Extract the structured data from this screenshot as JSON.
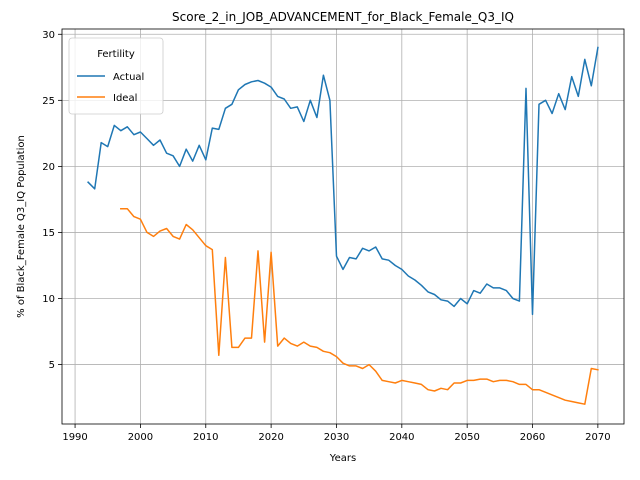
{
  "chart_data": {
    "type": "line",
    "title": "Score_2_in_JOB_ADVANCEMENT_for_Black_Female_Q3_IQ",
    "xlabel": "Years",
    "ylabel": "% of Black_Female Q3_IQ Population",
    "xlim": [
      1988,
      2074
    ],
    "ylim": [
      0.5,
      30.4
    ],
    "xticks": [
      1990,
      2000,
      2010,
      2020,
      2030,
      2040,
      2050,
      2060,
      2070
    ],
    "yticks": [
      5,
      10,
      15,
      20,
      25,
      30
    ],
    "grid": true,
    "legend": {
      "title": "Fertility",
      "position": "top-left"
    },
    "series": [
      {
        "name": "Actual",
        "color": "#1f77b4",
        "x": [
          1992,
          1993,
          1994,
          1995,
          1996,
          1997,
          1998,
          1999,
          2000,
          2001,
          2002,
          2003,
          2004,
          2005,
          2006,
          2007,
          2008,
          2009,
          2010,
          2011,
          2012,
          2013,
          2014,
          2015,
          2016,
          2017,
          2018,
          2019,
          2020,
          2021,
          2022,
          2023,
          2024,
          2025,
          2026,
          2027,
          2028,
          2029,
          2030,
          2031,
          2032,
          2033,
          2034,
          2035,
          2036,
          2037,
          2038,
          2039,
          2040,
          2041,
          2042,
          2043,
          2044,
          2045,
          2046,
          2047,
          2048,
          2049,
          2050,
          2051,
          2052,
          2053,
          2054,
          2055,
          2056,
          2057,
          2058,
          2059,
          2060,
          2061,
          2062,
          2063,
          2064,
          2065,
          2066,
          2067,
          2068,
          2069,
          2070
        ],
        "y": [
          18.8,
          18.3,
          21.8,
          21.5,
          23.1,
          22.7,
          23.0,
          22.4,
          22.6,
          22.1,
          21.6,
          22.0,
          21.0,
          20.8,
          20.0,
          21.3,
          20.4,
          21.6,
          20.5,
          22.9,
          22.8,
          24.4,
          24.7,
          25.8,
          26.2,
          26.4,
          26.5,
          26.3,
          26.0,
          25.3,
          25.1,
          24.4,
          24.5,
          23.4,
          25.0,
          23.7,
          26.9,
          25.0,
          13.2,
          12.2,
          13.1,
          13.0,
          13.8,
          13.6,
          13.9,
          13.0,
          12.9,
          12.5,
          12.2,
          11.7,
          11.4,
          11.0,
          10.5,
          10.3,
          9.9,
          9.8,
          9.4,
          10.0,
          9.6,
          10.6,
          10.4,
          11.1,
          10.8,
          10.8,
          10.6,
          10.0,
          9.8,
          25.9,
          8.8,
          24.7,
          25.0,
          24.0,
          25.5,
          24.3,
          26.8,
          25.3,
          28.1,
          26.1,
          29.0
        ]
      },
      {
        "name": "Ideal",
        "color": "#ff7f0e",
        "x": [
          1997,
          1998,
          1999,
          2000,
          2001,
          2002,
          2003,
          2004,
          2005,
          2006,
          2007,
          2008,
          2009,
          2010,
          2011,
          2012,
          2013,
          2014,
          2015,
          2016,
          2017,
          2018,
          2019,
          2020,
          2021,
          2022,
          2023,
          2024,
          2025,
          2026,
          2027,
          2028,
          2029,
          2030,
          2031,
          2032,
          2033,
          2034,
          2035,
          2036,
          2037,
          2038,
          2039,
          2040,
          2041,
          2042,
          2043,
          2044,
          2045,
          2046,
          2047,
          2048,
          2049,
          2050,
          2051,
          2052,
          2053,
          2054,
          2055,
          2056,
          2057,
          2058,
          2059,
          2060,
          2061,
          2062,
          2063,
          2064,
          2065,
          2066,
          2067,
          2068,
          2069,
          2070
        ],
        "y": [
          16.8,
          16.8,
          16.2,
          16.0,
          15.0,
          14.7,
          15.1,
          15.3,
          14.7,
          14.5,
          15.6,
          15.2,
          14.6,
          14.0,
          13.7,
          5.7,
          13.1,
          6.3,
          6.3,
          7.0,
          7.0,
          13.6,
          6.7,
          13.5,
          6.4,
          7.0,
          6.6,
          6.4,
          6.7,
          6.4,
          6.3,
          6.0,
          5.9,
          5.6,
          5.1,
          4.9,
          4.9,
          4.7,
          5.0,
          4.5,
          3.8,
          3.7,
          3.6,
          3.8,
          3.7,
          3.6,
          3.5,
          3.1,
          3.0,
          3.2,
          3.1,
          3.6,
          3.6,
          3.8,
          3.8,
          3.9,
          3.9,
          3.7,
          3.8,
          3.8,
          3.7,
          3.5,
          3.5,
          3.1,
          3.1,
          2.9,
          2.7,
          2.5,
          2.3,
          2.2,
          2.1,
          2.0,
          4.7,
          4.6
        ]
      }
    ]
  }
}
